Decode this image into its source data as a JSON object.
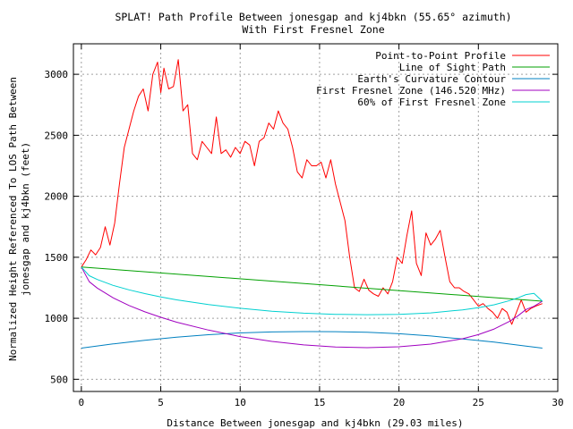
{
  "chart_data": {
    "type": "line",
    "title": "SPLAT! Path Profile Between jonesgap and kj4bkn (55.65° azimuth)",
    "subtitle": "With First Fresnel Zone",
    "xlabel": "Distance Between jonesgap and kj4bkn (29.03 miles)",
    "ylabel_line1": "Normalized Height Referenced To LOS Path Between",
    "ylabel_line2": "jonesgap and kj4bkn (feet)",
    "xlim": [
      -0.5,
      30
    ],
    "ylim": [
      400,
      3250
    ],
    "xticks": [
      0,
      5,
      10,
      15,
      20,
      25,
      30
    ],
    "yticks": [
      500,
      1000,
      1500,
      2000,
      2500,
      3000
    ],
    "grid": true,
    "legend_position": "top-right",
    "series": [
      {
        "name": "Point-to-Point Profile",
        "color": "#ff0000",
        "x": [
          0,
          0.3,
          0.6,
          0.9,
          1.2,
          1.5,
          1.8,
          2.1,
          2.4,
          2.7,
          3.0,
          3.3,
          3.6,
          3.9,
          4.2,
          4.5,
          4.8,
          5.0,
          5.2,
          5.5,
          5.8,
          6.1,
          6.4,
          6.7,
          7.0,
          7.3,
          7.6,
          7.9,
          8.2,
          8.5,
          8.8,
          9.1,
          9.4,
          9.7,
          10.0,
          10.3,
          10.6,
          10.9,
          11.2,
          11.5,
          11.8,
          12.1,
          12.4,
          12.7,
          13.0,
          13.3,
          13.6,
          13.9,
          14.2,
          14.5,
          14.8,
          15.1,
          15.4,
          15.7,
          16.0,
          16.3,
          16.6,
          16.9,
          17.2,
          17.5,
          17.8,
          18.1,
          18.4,
          18.7,
          19.0,
          19.3,
          19.6,
          19.9,
          20.2,
          20.5,
          20.8,
          21.1,
          21.4,
          21.7,
          22.0,
          22.3,
          22.6,
          22.9,
          23.2,
          23.5,
          23.8,
          24.1,
          24.4,
          24.7,
          25.0,
          25.3,
          25.6,
          25.9,
          26.2,
          26.5,
          26.8,
          27.1,
          27.4,
          27.7,
          28.0,
          28.3,
          28.6,
          29.03
        ],
        "y": [
          1420,
          1480,
          1560,
          1520,
          1580,
          1750,
          1600,
          1780,
          2100,
          2400,
          2550,
          2700,
          2820,
          2880,
          2700,
          3000,
          3100,
          2850,
          3050,
          2880,
          2900,
          3120,
          2700,
          2750,
          2350,
          2300,
          2450,
          2400,
          2350,
          2650,
          2350,
          2380,
          2320,
          2400,
          2350,
          2450,
          2420,
          2250,
          2450,
          2480,
          2600,
          2550,
          2700,
          2600,
          2550,
          2400,
          2200,
          2150,
          2300,
          2250,
          2250,
          2280,
          2150,
          2300,
          2100,
          1950,
          1800,
          1500,
          1250,
          1220,
          1320,
          1230,
          1200,
          1180,
          1250,
          1200,
          1300,
          1500,
          1450,
          1680,
          1880,
          1450,
          1350,
          1700,
          1600,
          1650,
          1720,
          1500,
          1300,
          1250,
          1250,
          1220,
          1200,
          1150,
          1100,
          1120,
          1080,
          1050,
          1000,
          1080,
          1050,
          950,
          1050,
          1150,
          1050,
          1080,
          1100,
          1120
        ]
      },
      {
        "name": "Line of Sight Path",
        "color": "#00a000",
        "x": [
          0,
          29.03
        ],
        "y": [
          1420,
          1140
        ]
      },
      {
        "name": "Earth's Curvature Contour",
        "color": "#0080c0",
        "x": [
          0,
          2,
          4,
          6,
          8,
          10,
          12,
          14,
          14.5,
          16,
          18,
          20,
          22,
          24,
          26,
          28,
          29.03
        ],
        "y": [
          755,
          790,
          820,
          845,
          865,
          880,
          888,
          891,
          891,
          890,
          885,
          873,
          855,
          830,
          805,
          772,
          755
        ]
      },
      {
        "name": "First Fresnel Zone (146.520 MHz)",
        "color": "#a000c0",
        "x": [
          0,
          0.5,
          1,
          2,
          3,
          4,
          5,
          6,
          8,
          10,
          12,
          14,
          16,
          18,
          20,
          22,
          24,
          25,
          26,
          27,
          27.5,
          28,
          28.5,
          29.03
        ],
        "y": [
          1420,
          1300,
          1248,
          1168,
          1105,
          1053,
          1008,
          968,
          903,
          850,
          810,
          782,
          765,
          759,
          766,
          788,
          832,
          866,
          912,
          977,
          1021,
          1072,
          1098,
          1140
        ]
      },
      {
        "name": "60% of First Fresnel Zone",
        "color": "#00d0d0",
        "x": [
          0,
          0.5,
          1,
          2,
          3,
          4,
          5,
          6,
          8,
          10,
          12,
          14,
          16,
          18,
          20,
          22,
          24,
          25,
          26,
          27,
          27.5,
          28,
          28.5,
          29.03
        ],
        "y": [
          1420,
          1349,
          1318,
          1270,
          1233,
          1202,
          1175,
          1151,
          1113,
          1082,
          1058,
          1042,
          1032,
          1029,
          1032,
          1044,
          1069,
          1087,
          1111,
          1146,
          1168,
          1194,
          1204,
          1140
        ]
      }
    ]
  }
}
